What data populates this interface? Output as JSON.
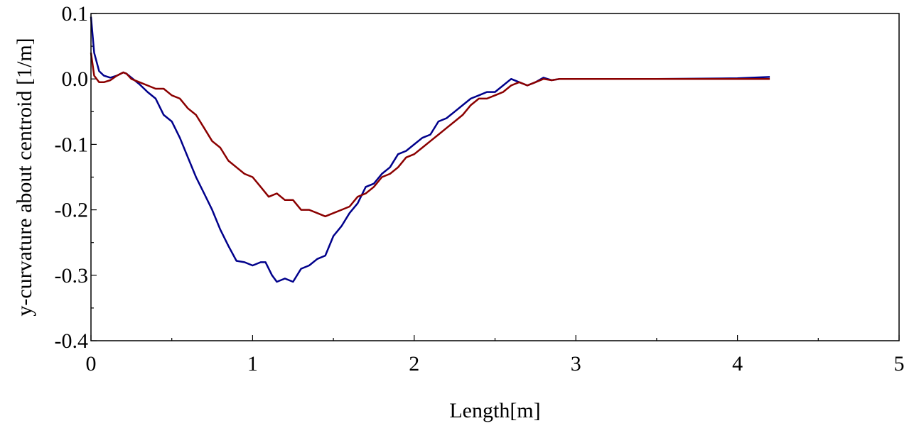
{
  "chart_data": {
    "type": "line",
    "title": "",
    "xlabel": "Length[m]",
    "ylabel": "y-curvature about centroid [1/m]",
    "xlim": [
      0,
      5
    ],
    "ylim": [
      -0.4,
      0.1
    ],
    "xticks": [
      0,
      1,
      2,
      3,
      4,
      5
    ],
    "xtick_labels": [
      "0",
      "1",
      "2",
      "3",
      "4",
      "5"
    ],
    "yticks": [
      0.1,
      0.0,
      -0.1,
      -0.2,
      -0.3,
      -0.4
    ],
    "ytick_labels": [
      "0.1",
      "0.0",
      "-0.1",
      "-0.2",
      "-0.3",
      "-0.4"
    ],
    "grid": false,
    "legend": false,
    "series": [
      {
        "color": "#00008b",
        "x": [
          0.0,
          0.02,
          0.05,
          0.08,
          0.12,
          0.16,
          0.2,
          0.22,
          0.25,
          0.3,
          0.35,
          0.4,
          0.45,
          0.5,
          0.55,
          0.6,
          0.65,
          0.7,
          0.75,
          0.8,
          0.85,
          0.9,
          0.95,
          1.0,
          1.05,
          1.08,
          1.12,
          1.15,
          1.2,
          1.25,
          1.3,
          1.35,
          1.4,
          1.45,
          1.5,
          1.55,
          1.6,
          1.65,
          1.7,
          1.75,
          1.8,
          1.85,
          1.9,
          1.95,
          2.0,
          2.05,
          2.1,
          2.15,
          2.2,
          2.25,
          2.3,
          2.35,
          2.4,
          2.45,
          2.5,
          2.55,
          2.6,
          2.65,
          2.7,
          2.75,
          2.8,
          2.85,
          2.9,
          3.0,
          3.5,
          4.0,
          4.2
        ],
        "y": [
          0.095,
          0.04,
          0.012,
          0.005,
          0.002,
          0.005,
          0.01,
          0.008,
          0.002,
          -0.008,
          -0.02,
          -0.03,
          -0.055,
          -0.065,
          -0.09,
          -0.12,
          -0.15,
          -0.175,
          -0.2,
          -0.23,
          -0.255,
          -0.278,
          -0.28,
          -0.285,
          -0.28,
          -0.28,
          -0.3,
          -0.31,
          -0.305,
          -0.31,
          -0.29,
          -0.285,
          -0.275,
          -0.27,
          -0.24,
          -0.225,
          -0.205,
          -0.19,
          -0.165,
          -0.16,
          -0.145,
          -0.135,
          -0.115,
          -0.11,
          -0.1,
          -0.09,
          -0.085,
          -0.065,
          -0.06,
          -0.05,
          -0.04,
          -0.03,
          -0.025,
          -0.02,
          -0.02,
          -0.01,
          0.0,
          -0.005,
          -0.01,
          -0.005,
          0.002,
          -0.002,
          0.0,
          0.0,
          0.0,
          0.001,
          0.003
        ]
      },
      {
        "color": "#8b0000",
        "x": [
          0.0,
          0.02,
          0.05,
          0.08,
          0.12,
          0.16,
          0.2,
          0.22,
          0.25,
          0.3,
          0.35,
          0.4,
          0.45,
          0.5,
          0.55,
          0.6,
          0.65,
          0.7,
          0.75,
          0.8,
          0.85,
          0.9,
          0.95,
          1.0,
          1.05,
          1.1,
          1.15,
          1.2,
          1.25,
          1.3,
          1.35,
          1.4,
          1.45,
          1.5,
          1.55,
          1.6,
          1.65,
          1.7,
          1.75,
          1.8,
          1.85,
          1.9,
          1.95,
          2.0,
          2.05,
          2.1,
          2.15,
          2.2,
          2.25,
          2.3,
          2.35,
          2.4,
          2.45,
          2.5,
          2.55,
          2.6,
          2.65,
          2.7,
          2.75,
          2.8,
          2.85,
          2.9,
          3.0,
          3.5,
          4.0,
          4.2
        ],
        "y": [
          0.04,
          0.005,
          -0.005,
          -0.005,
          -0.002,
          0.005,
          0.01,
          0.008,
          0.0,
          -0.005,
          -0.01,
          -0.015,
          -0.015,
          -0.025,
          -0.03,
          -0.045,
          -0.055,
          -0.075,
          -0.095,
          -0.105,
          -0.125,
          -0.135,
          -0.145,
          -0.15,
          -0.165,
          -0.18,
          -0.175,
          -0.185,
          -0.185,
          -0.2,
          -0.2,
          -0.205,
          -0.21,
          -0.205,
          -0.2,
          -0.195,
          -0.18,
          -0.175,
          -0.165,
          -0.15,
          -0.145,
          -0.135,
          -0.12,
          -0.115,
          -0.105,
          -0.095,
          -0.085,
          -0.075,
          -0.065,
          -0.055,
          -0.04,
          -0.03,
          -0.03,
          -0.025,
          -0.02,
          -0.01,
          -0.005,
          -0.01,
          -0.005,
          0.0,
          -0.002,
          0.0,
          0.0,
          0.0,
          0.0,
          0.0
        ]
      }
    ]
  }
}
